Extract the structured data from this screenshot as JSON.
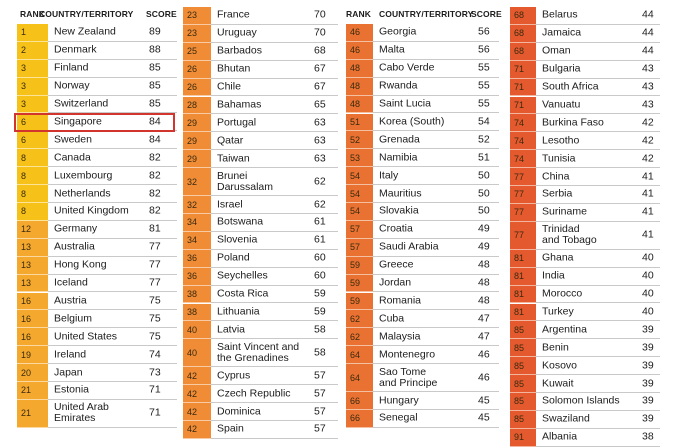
{
  "headers": {
    "rank": "RANK",
    "country": "COUNTRY/TERRITORY",
    "score": "SCORE"
  },
  "colors": {
    "tier1": "#f6c21a",
    "tier2": "#f4a92e",
    "tier3": "#f08c35",
    "tier4": "#e97232",
    "tier5": "#e45a2e",
    "highlight": "#d2352e"
  },
  "highlighted_country": "Singapore",
  "columns": [
    {
      "rows": [
        {
          "rank": "1",
          "country": "New Zealand",
          "score": "89"
        },
        {
          "rank": "2",
          "country": "Denmark",
          "score": "88"
        },
        {
          "rank": "3",
          "country": "Finland",
          "score": "85"
        },
        {
          "rank": "3",
          "country": "Norway",
          "score": "85"
        },
        {
          "rank": "3",
          "country": "Switzerland",
          "score": "85"
        },
        {
          "rank": "6",
          "country": "Singapore",
          "score": "84"
        },
        {
          "rank": "6",
          "country": "Sweden",
          "score": "84"
        },
        {
          "rank": "8",
          "country": "Canada",
          "score": "82"
        },
        {
          "rank": "8",
          "country": "Luxembourg",
          "score": "82"
        },
        {
          "rank": "8",
          "country": "Netherlands",
          "score": "82"
        },
        {
          "rank": "8",
          "country": "United Kingdom",
          "score": "82"
        },
        {
          "rank": "12",
          "country": "Germany",
          "score": "81"
        },
        {
          "rank": "13",
          "country": "Australia",
          "score": "77"
        },
        {
          "rank": "13",
          "country": "Hong Kong",
          "score": "77"
        },
        {
          "rank": "13",
          "country": "Iceland",
          "score": "77"
        },
        {
          "rank": "16",
          "country": "Austria",
          "score": "75"
        },
        {
          "rank": "16",
          "country": "Belgium",
          "score": "75"
        },
        {
          "rank": "16",
          "country": "United States",
          "score": "75"
        },
        {
          "rank": "19",
          "country": "Ireland",
          "score": "74"
        },
        {
          "rank": "20",
          "country": "Japan",
          "score": "73"
        },
        {
          "rank": "21",
          "country": "Estonia",
          "score": "71"
        },
        {
          "rank": "21",
          "country": "United Arab\nEmirates",
          "score": "71"
        }
      ]
    },
    {
      "rows": [
        {
          "rank": "23",
          "country": "France",
          "score": "70"
        },
        {
          "rank": "23",
          "country": "Uruguay",
          "score": "70"
        },
        {
          "rank": "25",
          "country": "Barbados",
          "score": "68"
        },
        {
          "rank": "26",
          "country": "Bhutan",
          "score": "67"
        },
        {
          "rank": "26",
          "country": "Chile",
          "score": "67"
        },
        {
          "rank": "28",
          "country": "Bahamas",
          "score": "65"
        },
        {
          "rank": "29",
          "country": "Portugal",
          "score": "63"
        },
        {
          "rank": "29",
          "country": "Qatar",
          "score": "63"
        },
        {
          "rank": "29",
          "country": "Taiwan",
          "score": "63"
        },
        {
          "rank": "32",
          "country": "Brunei\nDarussalam",
          "score": "62"
        },
        {
          "rank": "32",
          "country": "Israel",
          "score": "62"
        },
        {
          "rank": "34",
          "country": "Botswana",
          "score": "61"
        },
        {
          "rank": "34",
          "country": "Slovenia",
          "score": "61"
        },
        {
          "rank": "36",
          "country": "Poland",
          "score": "60"
        },
        {
          "rank": "36",
          "country": "Seychelles",
          "score": "60"
        },
        {
          "rank": "38",
          "country": "Costa Rica",
          "score": "59"
        },
        {
          "rank": "38",
          "country": "Lithuania",
          "score": "59"
        },
        {
          "rank": "40",
          "country": "Latvia",
          "score": "58"
        },
        {
          "rank": "40",
          "country": "Saint Vincent and\nthe Grenadines",
          "score": "58"
        },
        {
          "rank": "42",
          "country": "Cyprus",
          "score": "57"
        },
        {
          "rank": "42",
          "country": "Czech Republic",
          "score": "57"
        },
        {
          "rank": "42",
          "country": "Dominica",
          "score": "57"
        },
        {
          "rank": "42",
          "country": "Spain",
          "score": "57"
        }
      ]
    },
    {
      "rows": [
        {
          "rank": "46",
          "country": "Georgia",
          "score": "56"
        },
        {
          "rank": "46",
          "country": "Malta",
          "score": "56"
        },
        {
          "rank": "48",
          "country": "Cabo Verde",
          "score": "55"
        },
        {
          "rank": "48",
          "country": "Rwanda",
          "score": "55"
        },
        {
          "rank": "48",
          "country": "Saint Lucia",
          "score": "55"
        },
        {
          "rank": "51",
          "country": "Korea (South)",
          "score": "54"
        },
        {
          "rank": "52",
          "country": "Grenada",
          "score": "52"
        },
        {
          "rank": "53",
          "country": "Namibia",
          "score": "51"
        },
        {
          "rank": "54",
          "country": "Italy",
          "score": "50"
        },
        {
          "rank": "54",
          "country": "Mauritius",
          "score": "50"
        },
        {
          "rank": "54",
          "country": "Slovakia",
          "score": "50"
        },
        {
          "rank": "57",
          "country": "Croatia",
          "score": "49"
        },
        {
          "rank": "57",
          "country": "Saudi Arabia",
          "score": "49"
        },
        {
          "rank": "59",
          "country": "Greece",
          "score": "48"
        },
        {
          "rank": "59",
          "country": "Jordan",
          "score": "48"
        },
        {
          "rank": "59",
          "country": "Romania",
          "score": "48"
        },
        {
          "rank": "62",
          "country": "Cuba",
          "score": "47"
        },
        {
          "rank": "62",
          "country": "Malaysia",
          "score": "47"
        },
        {
          "rank": "64",
          "country": "Montenegro",
          "score": "46"
        },
        {
          "rank": "64",
          "country": "Sao Tome\nand Principe",
          "score": "46"
        },
        {
          "rank": "66",
          "country": "Hungary",
          "score": "45"
        },
        {
          "rank": "66",
          "country": "Senegal",
          "score": "45"
        }
      ]
    },
    {
      "rows": [
        {
          "rank": "68",
          "country": "Belarus",
          "score": "44"
        },
        {
          "rank": "68",
          "country": "Jamaica",
          "score": "44"
        },
        {
          "rank": "68",
          "country": "Oman",
          "score": "44"
        },
        {
          "rank": "71",
          "country": "Bulgaria",
          "score": "43"
        },
        {
          "rank": "71",
          "country": "South Africa",
          "score": "43"
        },
        {
          "rank": "71",
          "country": "Vanuatu",
          "score": "43"
        },
        {
          "rank": "74",
          "country": "Burkina Faso",
          "score": "42"
        },
        {
          "rank": "74",
          "country": "Lesotho",
          "score": "42"
        },
        {
          "rank": "74",
          "country": "Tunisia",
          "score": "42"
        },
        {
          "rank": "77",
          "country": "China",
          "score": "41"
        },
        {
          "rank": "77",
          "country": "Serbia",
          "score": "41"
        },
        {
          "rank": "77",
          "country": "Suriname",
          "score": "41"
        },
        {
          "rank": "77",
          "country": "Trinidad\nand Tobago",
          "score": "41"
        },
        {
          "rank": "81",
          "country": "Ghana",
          "score": "40"
        },
        {
          "rank": "81",
          "country": "India",
          "score": "40"
        },
        {
          "rank": "81",
          "country": "Morocco",
          "score": "40"
        },
        {
          "rank": "81",
          "country": "Turkey",
          "score": "40"
        },
        {
          "rank": "85",
          "country": "Argentina",
          "score": "39"
        },
        {
          "rank": "85",
          "country": "Benin",
          "score": "39"
        },
        {
          "rank": "85",
          "country": "Kosovo",
          "score": "39"
        },
        {
          "rank": "85",
          "country": "Kuwait",
          "score": "39"
        },
        {
          "rank": "85",
          "country": "Solomon Islands",
          "score": "39"
        },
        {
          "rank": "85",
          "country": "Swaziland",
          "score": "39"
        },
        {
          "rank": "91",
          "country": "Albania",
          "score": "38"
        }
      ]
    }
  ]
}
